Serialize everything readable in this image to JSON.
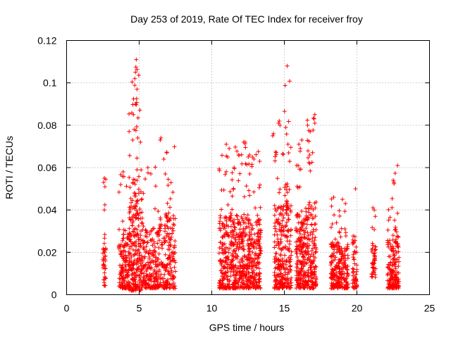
{
  "chart_data": {
    "type": "scatter",
    "title": "Day 253 of 2019, Rate Of TEC Index for receiver froy",
    "xlabel": "GPS time / hours",
    "ylabel": "ROTI / TECUs",
    "xlim": [
      0,
      25
    ],
    "ylim": [
      0,
      0.12
    ],
    "xticks": [
      0,
      5,
      10,
      15,
      20,
      25
    ],
    "xtick_labels": [
      "0",
      "5",
      "10",
      "15",
      "20",
      "25"
    ],
    "yticks": [
      0,
      0.02,
      0.04,
      0.06,
      0.08,
      0.1,
      0.12
    ],
    "ytick_labels": [
      "0",
      "0.02",
      "0.04",
      "0.06",
      "0.08",
      "0.1",
      "0.12"
    ],
    "grid": true,
    "marker": "+",
    "color": "#ff0000",
    "clusters": [
      {
        "x_range": [
          2.5,
          2.7
        ],
        "y_range": [
          0.004,
          0.055
        ],
        "count": 40
      },
      {
        "x_range": [
          3.6,
          4.3
        ],
        "y_range": [
          0.003,
          0.058
        ],
        "count": 140
      },
      {
        "x_range": [
          4.3,
          5.2
        ],
        "y_range": [
          0.002,
          0.111
        ],
        "count": 260
      },
      {
        "x_range": [
          5.2,
          6.4
        ],
        "y_range": [
          0.003,
          0.062
        ],
        "count": 200
      },
      {
        "x_range": [
          6.4,
          7.5
        ],
        "y_range": [
          0.003,
          0.074
        ],
        "count": 180
      },
      {
        "x_range": [
          10.5,
          11.5
        ],
        "y_range": [
          0.003,
          0.071
        ],
        "count": 220
      },
      {
        "x_range": [
          11.5,
          12.5
        ],
        "y_range": [
          0.003,
          0.072
        ],
        "count": 230
      },
      {
        "x_range": [
          12.5,
          13.4
        ],
        "y_range": [
          0.003,
          0.068
        ],
        "count": 200
      },
      {
        "x_range": [
          14.3,
          15.0
        ],
        "y_range": [
          0.003,
          0.082
        ],
        "count": 170
      },
      {
        "x_range": [
          15.0,
          15.5
        ],
        "y_range": [
          0.003,
          0.108
        ],
        "count": 110
      },
      {
        "x_range": [
          15.8,
          16.5
        ],
        "y_range": [
          0.003,
          0.073
        ],
        "count": 190
      },
      {
        "x_range": [
          16.5,
          17.2
        ],
        "y_range": [
          0.003,
          0.085
        ],
        "count": 170
      },
      {
        "x_range": [
          18.2,
          18.7
        ],
        "y_range": [
          0.003,
          0.047
        ],
        "count": 110
      },
      {
        "x_range": [
          18.7,
          19.4
        ],
        "y_range": [
          0.003,
          0.045
        ],
        "count": 140
      },
      {
        "x_range": [
          19.7,
          20.0
        ],
        "y_range": [
          0.003,
          0.05
        ],
        "count": 50
      },
      {
        "x_range": [
          21.0,
          21.3
        ],
        "y_range": [
          0.008,
          0.041
        ],
        "count": 45
      },
      {
        "x_range": [
          22.1,
          22.6
        ],
        "y_range": [
          0.003,
          0.054
        ],
        "count": 100
      },
      {
        "x_range": [
          22.6,
          22.9
        ],
        "y_range": [
          0.003,
          0.061
        ],
        "count": 70
      }
    ],
    "peaks": [
      {
        "x": 4.8,
        "y": 0.111
      },
      {
        "x": 4.7,
        "y": 0.102
      },
      {
        "x": 4.85,
        "y": 0.097
      },
      {
        "x": 4.75,
        "y": 0.09
      },
      {
        "x": 4.6,
        "y": 0.085
      },
      {
        "x": 4.65,
        "y": 0.078
      },
      {
        "x": 4.55,
        "y": 0.073
      },
      {
        "x": 4.9,
        "y": 0.074
      },
      {
        "x": 3.9,
        "y": 0.058
      },
      {
        "x": 2.6,
        "y": 0.055
      },
      {
        "x": 2.55,
        "y": 0.053
      },
      {
        "x": 2.6,
        "y": 0.04
      },
      {
        "x": 6.5,
        "y": 0.074
      },
      {
        "x": 6.45,
        "y": 0.073
      },
      {
        "x": 6.9,
        "y": 0.067
      },
      {
        "x": 6.7,
        "y": 0.064
      },
      {
        "x": 5.6,
        "y": 0.06
      },
      {
        "x": 6.8,
        "y": 0.057
      },
      {
        "x": 11.0,
        "y": 0.071
      },
      {
        "x": 11.2,
        "y": 0.069
      },
      {
        "x": 11.1,
        "y": 0.065
      },
      {
        "x": 12.2,
        "y": 0.072
      },
      {
        "x": 12.3,
        "y": 0.072
      },
      {
        "x": 12.6,
        "y": 0.066
      },
      {
        "x": 12.8,
        "y": 0.065
      },
      {
        "x": 13.3,
        "y": 0.063
      },
      {
        "x": 14.2,
        "y": 0.075
      },
      {
        "x": 14.25,
        "y": 0.076
      },
      {
        "x": 14.6,
        "y": 0.081
      },
      {
        "x": 14.7,
        "y": 0.08
      },
      {
        "x": 14.65,
        "y": 0.082
      },
      {
        "x": 15.2,
        "y": 0.108
      },
      {
        "x": 15.1,
        "y": 0.079
      },
      {
        "x": 15.25,
        "y": 0.071
      },
      {
        "x": 15.3,
        "y": 0.067
      },
      {
        "x": 16.2,
        "y": 0.073
      },
      {
        "x": 16.0,
        "y": 0.071
      },
      {
        "x": 16.1,
        "y": 0.069
      },
      {
        "x": 17.1,
        "y": 0.085
      },
      {
        "x": 17.05,
        "y": 0.083
      },
      {
        "x": 17.1,
        "y": 0.081
      },
      {
        "x": 19.0,
        "y": 0.045
      },
      {
        "x": 18.4,
        "y": 0.046
      },
      {
        "x": 19.9,
        "y": 0.05
      },
      {
        "x": 21.1,
        "y": 0.041
      },
      {
        "x": 22.5,
        "y": 0.054
      },
      {
        "x": 22.55,
        "y": 0.053
      },
      {
        "x": 22.8,
        "y": 0.061
      }
    ]
  }
}
